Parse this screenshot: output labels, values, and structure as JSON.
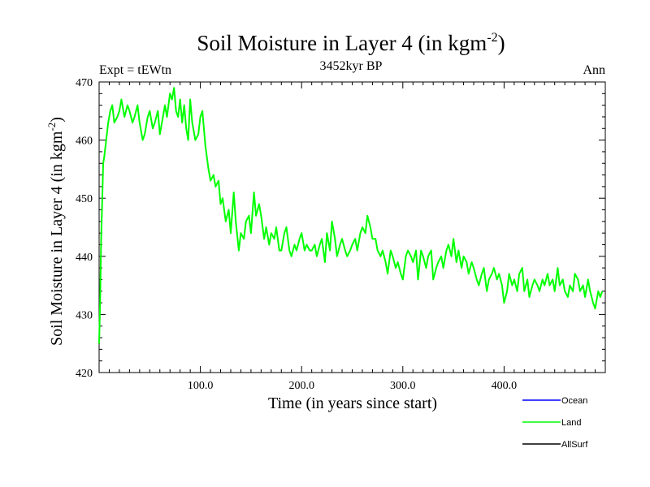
{
  "chart_data": {
    "type": "line",
    "title": "Soil Moisture in Layer 4 (in kgm",
    "title_superscript": "-2",
    "title_suffix": ")",
    "subtitle_left": "Expt = tEWtn",
    "subtitle_center": "3452kyr BP",
    "subtitle_right": "Ann",
    "xlabel": "Time (in years since start)",
    "ylabel": "Soil Moisture in Layer 4 (in kgm",
    "ylabel_superscript": "-2",
    "ylabel_suffix": ")",
    "xlim": [
      0,
      500
    ],
    "ylim": [
      420,
      470
    ],
    "xticks": [
      100,
      200,
      300,
      400
    ],
    "xtick_labels": [
      "100.0",
      "200.0",
      "300.0",
      "400.0"
    ],
    "yticks": [
      420,
      430,
      440,
      450,
      460,
      470
    ],
    "ytick_labels": [
      "420",
      "430",
      "440",
      "450",
      "460",
      "470"
    ],
    "series": [
      {
        "name": "Land",
        "color": "#00ff00",
        "x": [
          0,
          1,
          2,
          3,
          4,
          5,
          7,
          9,
          11,
          13,
          15,
          18,
          20,
          22,
          25,
          28,
          30,
          33,
          35,
          38,
          40,
          43,
          45,
          48,
          50,
          53,
          55,
          58,
          60,
          62,
          65,
          67,
          70,
          72,
          74,
          76,
          78,
          80,
          82,
          84,
          86,
          88,
          90,
          92,
          95,
          98,
          100,
          102,
          105,
          108,
          110,
          113,
          115,
          118,
          120,
          122,
          125,
          128,
          130,
          133,
          135,
          138,
          140,
          143,
          145,
          148,
          150,
          153,
          155,
          158,
          160,
          163,
          165,
          168,
          170,
          173,
          175,
          178,
          180,
          183,
          185,
          188,
          190,
          193,
          195,
          198,
          200,
          203,
          205,
          208,
          210,
          213,
          215,
          218,
          220,
          223,
          225,
          228,
          230,
          233,
          235,
          238,
          240,
          243,
          245,
          248,
          250,
          253,
          255,
          258,
          260,
          263,
          265,
          268,
          270,
          273,
          275,
          278,
          280,
          283,
          285,
          288,
          290,
          293,
          295,
          298,
          300,
          303,
          305,
          308,
          310,
          313,
          315,
          318,
          320,
          323,
          325,
          328,
          330,
          333,
          335,
          338,
          340,
          343,
          345,
          348,
          350,
          353,
          355,
          358,
          360,
          363,
          365,
          368,
          370,
          373,
          375,
          378,
          380,
          383,
          385,
          388,
          390,
          393,
          395,
          398,
          400,
          403,
          405,
          408,
          410,
          413,
          415,
          418,
          420,
          423,
          425,
          428,
          430,
          433,
          435,
          438,
          440,
          443,
          445,
          448,
          450,
          453,
          455,
          458,
          460,
          463,
          465,
          468,
          470,
          473,
          475,
          478,
          480,
          483,
          485,
          488,
          490,
          493,
          495,
          497
        ],
        "y": [
          425,
          432,
          443,
          449,
          456,
          457,
          460,
          463,
          465,
          466,
          463,
          464,
          465,
          467,
          464,
          466,
          465,
          463,
          464,
          466,
          463,
          460,
          461,
          464,
          465,
          462,
          463,
          465,
          461,
          463,
          466,
          464,
          468,
          467,
          469,
          465,
          464,
          467,
          463,
          466,
          462,
          460,
          467,
          463,
          460,
          461,
          464,
          465,
          459,
          455,
          453,
          454,
          452,
          453,
          449,
          450,
          446,
          448,
          444,
          451,
          446,
          441,
          444,
          443,
          446,
          447,
          444,
          451,
          447,
          449,
          447,
          443,
          445,
          442,
          444,
          443,
          445,
          441,
          441,
          444,
          445,
          441,
          440,
          442,
          441,
          443,
          444,
          441,
          442,
          441,
          441,
          442,
          440,
          442,
          443,
          439,
          444,
          441,
          446,
          443,
          440,
          442,
          443,
          441,
          440,
          441,
          442,
          443,
          441,
          444,
          445,
          444,
          447,
          445,
          443,
          443,
          441,
          440,
          441,
          439,
          437,
          441,
          440,
          438,
          439,
          437,
          436,
          440,
          441,
          440,
          439,
          441,
          436,
          441,
          440,
          438,
          440,
          441,
          436,
          438,
          439,
          440,
          438,
          441,
          442,
          440,
          443,
          439,
          441,
          438,
          440,
          439,
          437,
          439,
          438,
          436,
          435,
          437,
          438,
          434,
          436,
          437,
          438,
          436,
          437,
          435,
          432,
          434,
          437,
          435,
          436,
          434,
          437,
          438,
          434,
          436,
          433,
          435,
          436,
          435,
          434,
          436,
          435,
          437,
          435,
          436,
          434,
          438,
          435,
          436,
          434,
          433,
          435,
          434,
          437,
          436,
          434,
          435,
          433,
          436,
          434,
          432,
          431,
          434,
          433,
          434
        ]
      },
      {
        "name": "Ocean",
        "color": "#0000ff",
        "x": [],
        "y": []
      },
      {
        "name": "AllSurf",
        "color": "#000000",
        "x": [],
        "y": []
      }
    ],
    "legend": [
      "Ocean",
      "Land",
      "AllSurf"
    ],
    "legend_position": "bottom-right"
  }
}
